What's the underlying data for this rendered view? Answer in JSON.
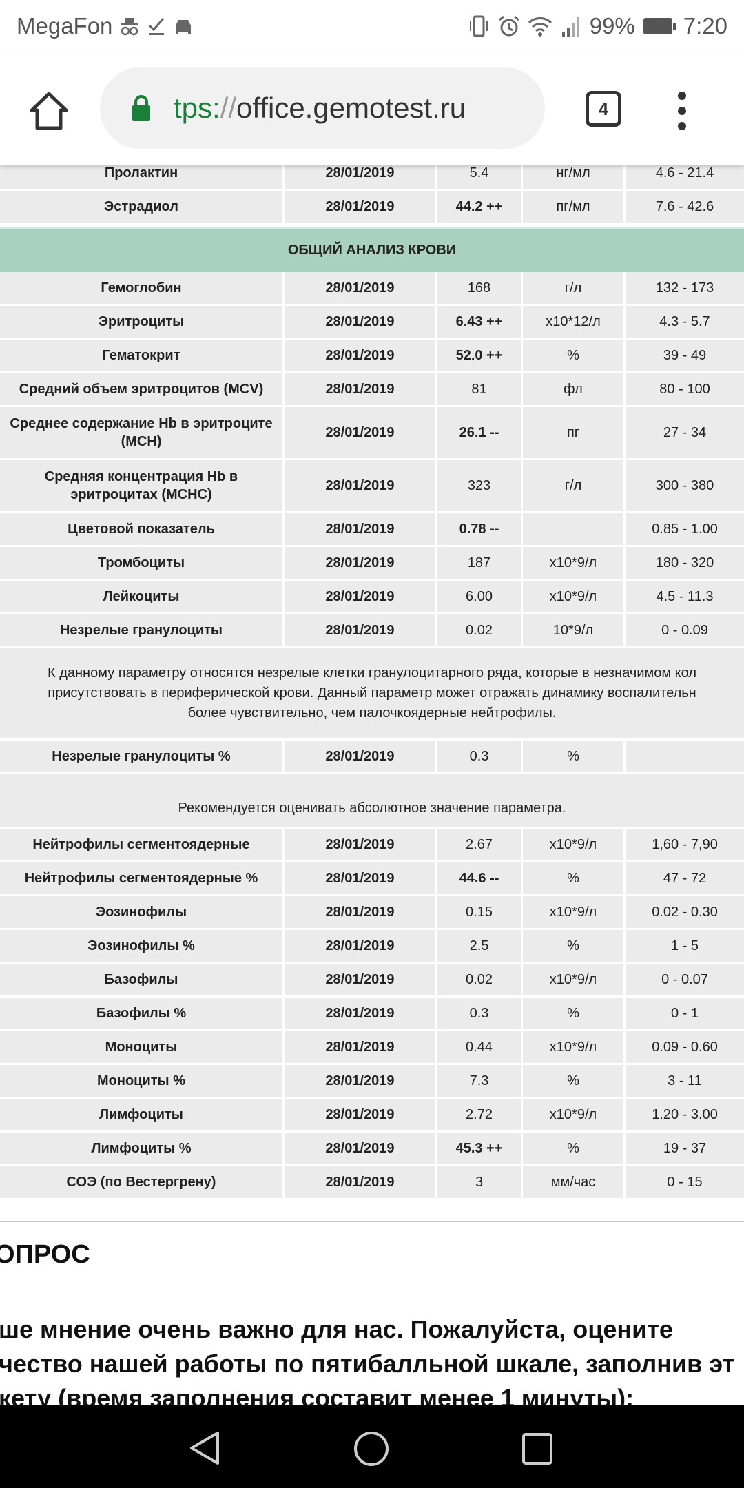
{
  "status_bar": {
    "carrier": "MegaFon",
    "battery": "99%",
    "time": "7:20"
  },
  "browser": {
    "url_scheme": "tps:",
    "url_sep": "//",
    "url_host": "office.gemotest.ru",
    "tab_count": "4",
    "accent": "#188038"
  },
  "top_rows": [
    {
      "name": "Пролактин",
      "date": "28/01/2019",
      "value": "5.4",
      "unit": "нг/мл",
      "range": "4.6 - 21.4",
      "flag": false
    },
    {
      "name": "Эстрадиол",
      "date": "28/01/2019",
      "value": "44.2 ++",
      "unit": "пг/мл",
      "range": "7.6 - 42.6",
      "flag": true
    }
  ],
  "section_title": "ОБЩИЙ АНАЛИЗ КРОВИ",
  "section_color": "#a8d2bf",
  "rows_a": [
    {
      "name": "Гемоглобин",
      "date": "28/01/2019",
      "value": "168",
      "unit": "г/л",
      "range": "132 - 173",
      "flag": false
    },
    {
      "name": "Эритроциты",
      "date": "28/01/2019",
      "value": "6.43 ++",
      "unit": "x10*12/л",
      "range": "4.3 - 5.7",
      "flag": true
    },
    {
      "name": "Гематокрит",
      "date": "28/01/2019",
      "value": "52.0 ++",
      "unit": "%",
      "range": "39 - 49",
      "flag": true
    },
    {
      "name": "Средний объем эритроцитов (MCV)",
      "date": "28/01/2019",
      "value": "81",
      "unit": "фл",
      "range": "80 - 100",
      "flag": false
    },
    {
      "name": "Среднее содержание Hb в эритроците (MCH)",
      "date": "28/01/2019",
      "value": "26.1 --",
      "unit": "пг",
      "range": "27 - 34",
      "flag": true,
      "tall": true
    },
    {
      "name": "Средняя концентрация Hb в эритроцитах (MCHC)",
      "date": "28/01/2019",
      "value": "323",
      "unit": "г/л",
      "range": "300 - 380",
      "flag": false,
      "tall": true
    },
    {
      "name": "Цветовой показатель",
      "date": "28/01/2019",
      "value": "0.78 --",
      "unit": "",
      "range": "0.85 - 1.00",
      "flag": true
    },
    {
      "name": "Тромбоциты",
      "date": "28/01/2019",
      "value": "187",
      "unit": "x10*9/л",
      "range": "180 - 320",
      "flag": false
    },
    {
      "name": "Лейкоциты",
      "date": "28/01/2019",
      "value": "6.00",
      "unit": "x10*9/л",
      "range": "4.5 - 11.3",
      "flag": false
    },
    {
      "name": "Незрелые гранулоциты",
      "date": "28/01/2019",
      "value": "0.02",
      "unit": "10*9/л",
      "range": "0 - 0.09",
      "flag": false
    }
  ],
  "note_1": [
    "К данному параметру относятся незрелые клетки гранулоцитарного ряда, которые в незначимом кол",
    "присутствовать в периферической крови. Данный параметр может отражать динамику воспалительн",
    "более чувствительно, чем палочкоядерные нейтрофилы."
  ],
  "row_b": {
    "name": "Незрелые гранулоциты %",
    "date": "28/01/2019",
    "value": "0.3",
    "unit": "%",
    "range": "",
    "flag": false
  },
  "note_2": "Рекомендуется оценивать абсолютное значение параметра.",
  "rows_c": [
    {
      "name": "Нейтрофилы сегментоядерные",
      "date": "28/01/2019",
      "value": "2.67",
      "unit": "x10*9/л",
      "range": "1,60 - 7,90",
      "flag": false
    },
    {
      "name": "Нейтрофилы сегментоядерные %",
      "date": "28/01/2019",
      "value": "44.6 --",
      "unit": "%",
      "range": "47 - 72",
      "flag": true
    },
    {
      "name": "Эозинофилы",
      "date": "28/01/2019",
      "value": "0.15",
      "unit": "x10*9/л",
      "range": "0.02 - 0.30",
      "flag": false
    },
    {
      "name": "Эозинофилы %",
      "date": "28/01/2019",
      "value": "2.5",
      "unit": "%",
      "range": "1 - 5",
      "flag": false
    },
    {
      "name": "Базофилы",
      "date": "28/01/2019",
      "value": "0.02",
      "unit": "x10*9/л",
      "range": "0 - 0.07",
      "flag": false
    },
    {
      "name": "Базофилы %",
      "date": "28/01/2019",
      "value": "0.3",
      "unit": "%",
      "range": "0 - 1",
      "flag": false
    },
    {
      "name": "Моноциты",
      "date": "28/01/2019",
      "value": "0.44",
      "unit": "x10*9/л",
      "range": "0.09 - 0.60",
      "flag": false
    },
    {
      "name": "Моноциты %",
      "date": "28/01/2019",
      "value": "7.3",
      "unit": "%",
      "range": "3 - 11",
      "flag": false
    },
    {
      "name": "Лимфоциты",
      "date": "28/01/2019",
      "value": "2.72",
      "unit": "x10*9/л",
      "range": "1.20 - 3.00",
      "flag": false
    },
    {
      "name": "Лимфоциты %",
      "date": "28/01/2019",
      "value": "45.3 ++",
      "unit": "%",
      "range": "19 - 37",
      "flag": true
    },
    {
      "name": "СОЭ (по Вестергрену)",
      "date": "28/01/2019",
      "value": "3",
      "unit": "мм/час",
      "range": "0 - 15",
      "flag": false
    }
  ],
  "survey": {
    "title": "ОПРОС",
    "lines": [
      "ше мнение очень важно для нас. Пожалуйста, оцените",
      "чество нашей работы по пятибалльной шкале, заполнив эт",
      "кету (время заполнения составит менее 1 минуты):"
    ]
  }
}
